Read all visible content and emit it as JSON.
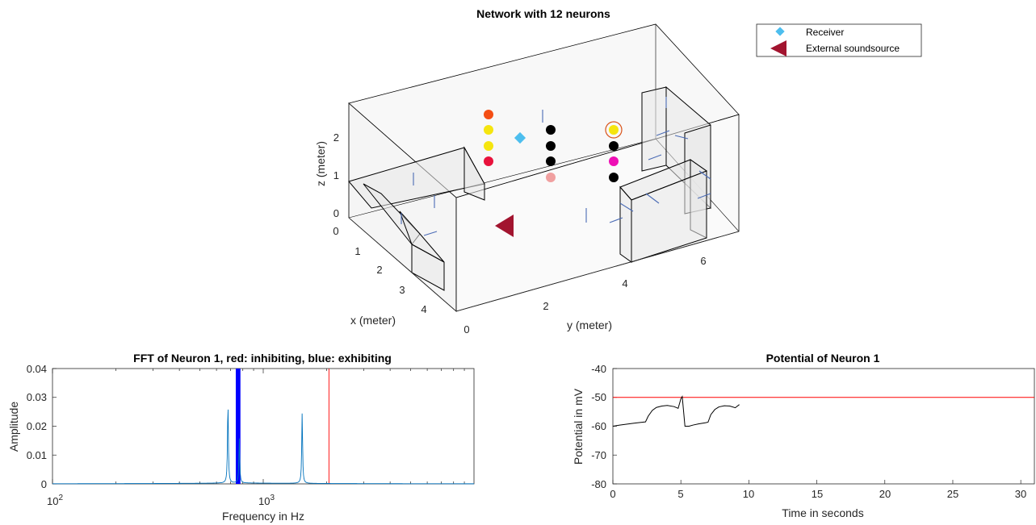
{
  "chart_data": [
    {
      "type": "scatter",
      "title": "Network with 12 neurons",
      "xlabel": "x (meter)",
      "ylabel": "y (meter)",
      "zlabel": "z (meter)",
      "x_ticks": [
        "0",
        "1",
        "2",
        "3",
        "4"
      ],
      "y_ticks": [
        "0",
        "2",
        "4",
        "6"
      ],
      "z_ticks": [
        "0",
        "1",
        "2"
      ],
      "legend": {
        "position": "top-right",
        "entries": [
          {
            "label": "Receiver",
            "marker": "diamond",
            "color": "#4DBEEE"
          },
          {
            "label": "External soundsource",
            "marker": "triangle-left",
            "color": "#A2142F"
          }
        ]
      },
      "neurons": [
        {
          "color": "#F44E14"
        },
        {
          "color": "#F5E50F"
        },
        {
          "color": "#F5E50F"
        },
        {
          "color": "#E8123C"
        },
        {
          "color": "#000000"
        },
        {
          "color": "#000000"
        },
        {
          "color": "#000000"
        },
        {
          "color": "#F0A0A0"
        },
        {
          "color": "#F5E50F",
          "highlighted": true
        },
        {
          "color": "#000000"
        },
        {
          "color": "#EE0FB5"
        },
        {
          "color": "#000000"
        }
      ]
    },
    {
      "type": "line",
      "title": "FFT of Neuron  1, red: inhibiting, blue: exhibiting",
      "xlabel": "Frequency in Hz",
      "ylabel": "Amplitude",
      "xscale": "log",
      "xlim": [
        100,
        10000
      ],
      "ylim": [
        0,
        0.04
      ],
      "x_tick_labels": [
        {
          "base": "10",
          "exp": "2",
          "value": 100
        },
        {
          "base": "10",
          "exp": "3",
          "value": 1000
        }
      ],
      "y_ticks": [
        "0",
        "0.01",
        "0.02",
        "0.03",
        "0.04"
      ],
      "series": [
        {
          "color": "#0072BD",
          "peaks": [
            {
              "x": 680,
              "y": 0.0285
            },
            {
              "x": 770,
              "y": 0.0155
            },
            {
              "x": 1530,
              "y": 0.0245
            }
          ]
        }
      ],
      "excitatory_lines": {
        "color": "#0000FF",
        "x": [
          745,
          750,
          755,
          760,
          765,
          770,
          775
        ]
      },
      "inhibitory_lines": {
        "color": "#FF0000",
        "x": [
          2050
        ]
      }
    },
    {
      "type": "line",
      "title": "Potential of Neuron 1",
      "xlabel": "Time in seconds",
      "ylabel": "Potential in mV",
      "xlim": [
        0,
        31
      ],
      "ylim": [
        -80,
        -40
      ],
      "x_ticks": [
        "0",
        "5",
        "10",
        "15",
        "20",
        "25",
        "30"
      ],
      "y_ticks": [
        "-40",
        "-50",
        "-60",
        "-70",
        "-80"
      ],
      "threshold": {
        "y": -50,
        "color": "#FF0000"
      },
      "series": [
        {
          "color": "#000000",
          "x": [
            0,
            0.5,
            1.0,
            1.5,
            2.0,
            2.4,
            2.6,
            2.9,
            3.2,
            3.6,
            4.0,
            4.5,
            4.8,
            5.0,
            5.1,
            5.3,
            5.6,
            5.9,
            6.3,
            6.8,
            7.0,
            7.2,
            7.5,
            7.8,
            8.2,
            8.6,
            9.0,
            9.3
          ],
          "y": [
            -60,
            -59.6,
            -59.3,
            -59.0,
            -58.7,
            -58.5,
            -56.5,
            -54.5,
            -53.5,
            -53.0,
            -52.8,
            -53.2,
            -53.8,
            -50.5,
            -49.7,
            -60.0,
            -60.0,
            -59.6,
            -59.2,
            -58.8,
            -58.6,
            -56.0,
            -54.2,
            -53.3,
            -52.9,
            -53.0,
            -53.6,
            -52.5
          ]
        }
      ]
    }
  ]
}
